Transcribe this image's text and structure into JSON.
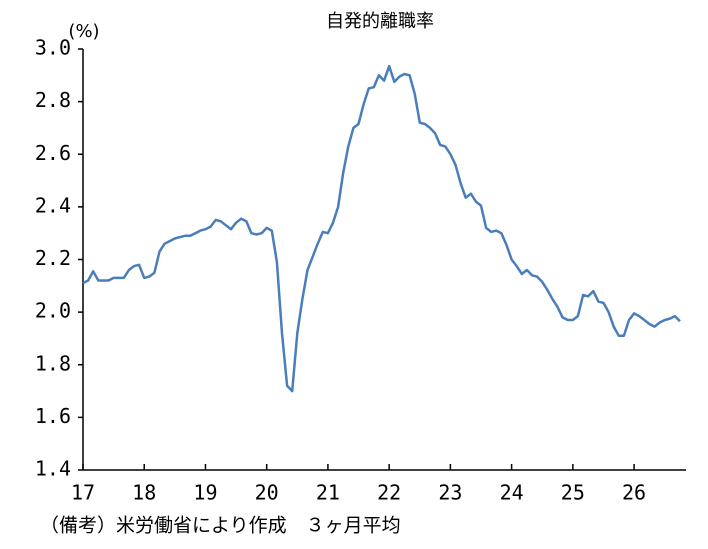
{
  "chart_data": {
    "type": "line",
    "title": "自発的離職率",
    "unit_label": "(%)",
    "note": "（備考）米労働省により作成　３ヶ月平均",
    "color": "#4a7ebb",
    "categories": [
      "17",
      null,
      null,
      null,
      null,
      null,
      null,
      null,
      null,
      null,
      null,
      null,
      "18",
      null,
      null,
      null,
      null,
      null,
      null,
      null,
      null,
      null,
      null,
      null,
      "19",
      null,
      null,
      null,
      null,
      null,
      null,
      null,
      null,
      null,
      null,
      null,
      "20",
      null,
      null,
      null,
      null,
      null,
      null,
      null,
      null,
      null,
      null,
      null,
      "21",
      null,
      null,
      null,
      null,
      null,
      null,
      null,
      null,
      null,
      null,
      null,
      "22",
      null,
      null,
      null,
      null,
      null,
      null,
      null,
      null,
      null,
      null,
      null,
      "23",
      null,
      null,
      null,
      null,
      null,
      null,
      null,
      null,
      null,
      null,
      null,
      "24",
      null,
      null,
      null,
      null,
      null,
      null,
      null,
      null,
      null,
      null,
      null,
      "25",
      null,
      null,
      null,
      null,
      null,
      null,
      null,
      null,
      null,
      null,
      null,
      "26",
      null,
      null,
      null,
      null,
      null,
      null,
      null,
      null,
      null
    ],
    "values": [
      2.11,
      2.12,
      2.155,
      2.12,
      2.12,
      2.12,
      2.13,
      2.13,
      2.13,
      2.16,
      2.175,
      2.18,
      2.13,
      2.135,
      2.15,
      2.23,
      2.26,
      2.27,
      2.28,
      2.285,
      2.29,
      2.29,
      2.3,
      2.31,
      2.315,
      2.325,
      2.35,
      2.345,
      2.33,
      2.315,
      2.34,
      2.355,
      2.345,
      2.3,
      2.295,
      2.3,
      2.32,
      2.31,
      2.19,
      1.92,
      1.72,
      1.7,
      1.92,
      2.05,
      2.16,
      2.21,
      2.26,
      2.305,
      2.3,
      2.34,
      2.4,
      2.53,
      2.63,
      2.7,
      2.715,
      2.79,
      2.85,
      2.855,
      2.9,
      2.88,
      2.935,
      2.875,
      2.895,
      2.905,
      2.9,
      2.83,
      2.72,
      2.715,
      2.7,
      2.68,
      2.635,
      2.63,
      2.6,
      2.56,
      2.49,
      2.435,
      2.45,
      2.42,
      2.405,
      2.32,
      2.305,
      2.31,
      2.3,
      2.255,
      2.2,
      2.175,
      2.145,
      2.16,
      2.14,
      2.135,
      2.115,
      2.085,
      2.05,
      2.02,
      1.98,
      1.97,
      1.97,
      1.985,
      2.065,
      2.06,
      2.08,
      2.04,
      2.035,
      2.0,
      1.945,
      1.91,
      1.91,
      1.97,
      1.995,
      1.985,
      1.97,
      1.955,
      1.945,
      1.96,
      1.97,
      1.975,
      1.985,
      1.965
    ],
    "ylim": [
      1.4,
      3.0
    ],
    "yticks": [
      {
        "value": 1.4,
        "label": "1.4"
      },
      {
        "value": 1.6,
        "label": "1.6"
      },
      {
        "value": 1.8,
        "label": "1.8"
      },
      {
        "value": 2.0,
        "label": "2.0"
      },
      {
        "value": 2.2,
        "label": "2.2"
      },
      {
        "value": 2.4,
        "label": "2.4"
      },
      {
        "value": 2.6,
        "label": "2.6"
      },
      {
        "value": 2.8,
        "label": "2.8"
      },
      {
        "value": 3.0,
        "label": "3.0"
      }
    ],
    "grid": false
  }
}
